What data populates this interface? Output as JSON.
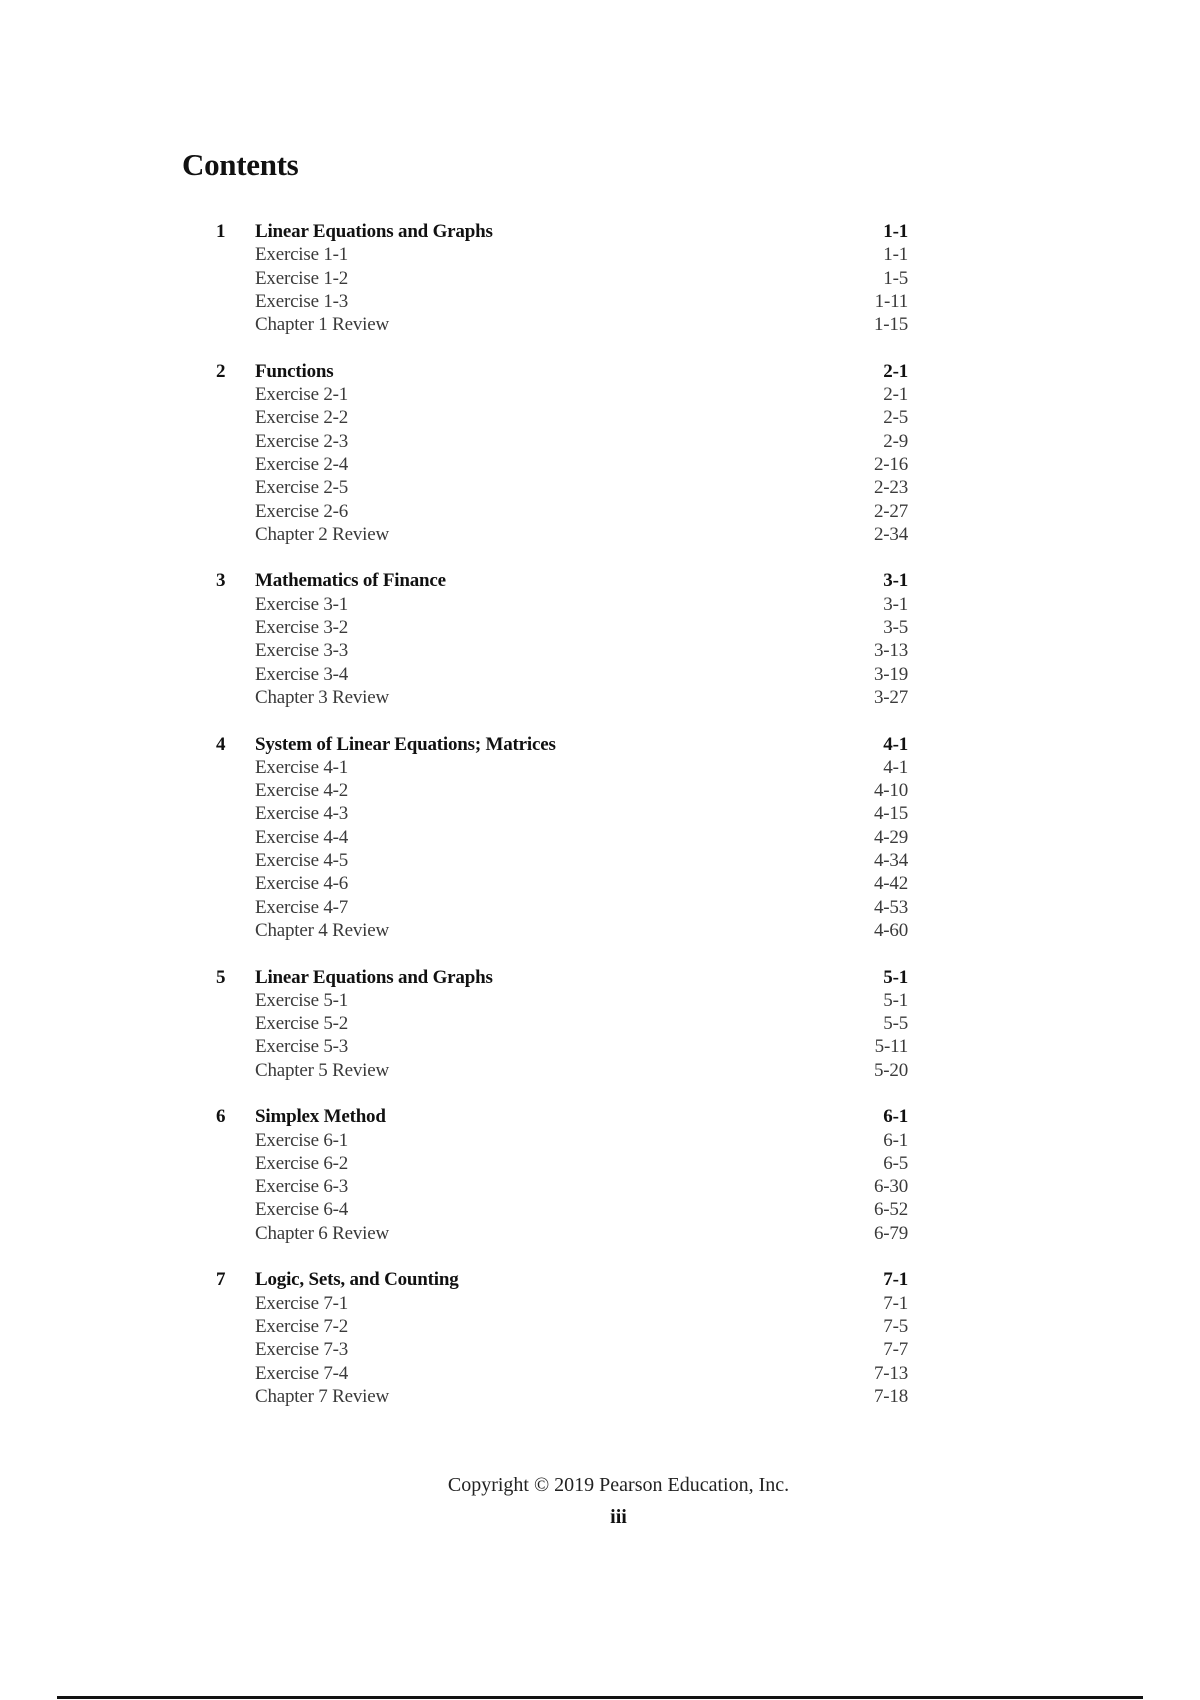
{
  "title": "Contents",
  "chapters": [
    {
      "number": "1",
      "title": "Linear Equations and Graphs",
      "page": "1-1",
      "entries": [
        {
          "label": "Exercise 1-1",
          "page": "1-1"
        },
        {
          "label": "Exercise 1-2",
          "page": "1-5"
        },
        {
          "label": "Exercise 1-3",
          "page": "1-11"
        },
        {
          "label": "Chapter 1 Review",
          "page": "1-15"
        }
      ]
    },
    {
      "number": "2",
      "title": "Functions",
      "page": "2-1",
      "entries": [
        {
          "label": "Exercise 2-1",
          "page": "2-1"
        },
        {
          "label": "Exercise 2-2",
          "page": "2-5"
        },
        {
          "label": "Exercise 2-3",
          "page": "2-9"
        },
        {
          "label": "Exercise 2-4",
          "page": "2-16"
        },
        {
          "label": "Exercise 2-5",
          "page": "2-23"
        },
        {
          "label": "Exercise 2-6",
          "page": "2-27"
        },
        {
          "label": "Chapter 2 Review",
          "page": "2-34"
        }
      ]
    },
    {
      "number": "3",
      "title": "Mathematics of Finance",
      "page": "3-1",
      "entries": [
        {
          "label": "Exercise 3-1",
          "page": "3-1"
        },
        {
          "label": "Exercise 3-2",
          "page": "3-5"
        },
        {
          "label": "Exercise 3-3",
          "page": "3-13"
        },
        {
          "label": "Exercise 3-4",
          "page": "3-19"
        },
        {
          "label": "Chapter 3 Review",
          "page": "3-27"
        }
      ]
    },
    {
      "number": "4",
      "title": "System of Linear Equations; Matrices",
      "page": "4-1",
      "entries": [
        {
          "label": "Exercise 4-1",
          "page": "4-1"
        },
        {
          "label": "Exercise 4-2",
          "page": "4-10"
        },
        {
          "label": "Exercise 4-3",
          "page": "4-15"
        },
        {
          "label": "Exercise 4-4",
          "page": "4-29"
        },
        {
          "label": "Exercise 4-5",
          "page": "4-34"
        },
        {
          "label": "Exercise 4-6",
          "page": "4-42"
        },
        {
          "label": "Exercise 4-7",
          "page": "4-53"
        },
        {
          "label": "Chapter 4 Review",
          "page": "4-60"
        }
      ]
    },
    {
      "number": "5",
      "title": "Linear Equations and Graphs",
      "page": "5-1",
      "entries": [
        {
          "label": "Exercise 5-1",
          "page": "5-1"
        },
        {
          "label": "Exercise 5-2",
          "page": "5-5"
        },
        {
          "label": "Exercise 5-3",
          "page": "5-11"
        },
        {
          "label": "Chapter 5 Review",
          "page": "5-20"
        }
      ]
    },
    {
      "number": "6",
      "title": "Simplex Method",
      "page": "6-1",
      "entries": [
        {
          "label": "Exercise 6-1",
          "page": "6-1"
        },
        {
          "label": "Exercise 6-2",
          "page": "6-5"
        },
        {
          "label": "Exercise 6-3",
          "page": "6-30"
        },
        {
          "label": "Exercise 6-4",
          "page": "6-52"
        },
        {
          "label": "Chapter 6 Review",
          "page": "6-79"
        }
      ]
    },
    {
      "number": "7",
      "title": "Logic, Sets, and Counting",
      "page": "7-1",
      "entries": [
        {
          "label": "Exercise 7-1",
          "page": "7-1"
        },
        {
          "label": "Exercise 7-2",
          "page": "7-5"
        },
        {
          "label": "Exercise 7-3",
          "page": "7-7"
        },
        {
          "label": "Exercise 7-4",
          "page": "7-13"
        },
        {
          "label": "Chapter 7 Review",
          "page": "7-18"
        }
      ]
    }
  ],
  "footer": {
    "copyright": "Copyright © 2019 Pearson Education, Inc.",
    "page_number": "iii"
  }
}
